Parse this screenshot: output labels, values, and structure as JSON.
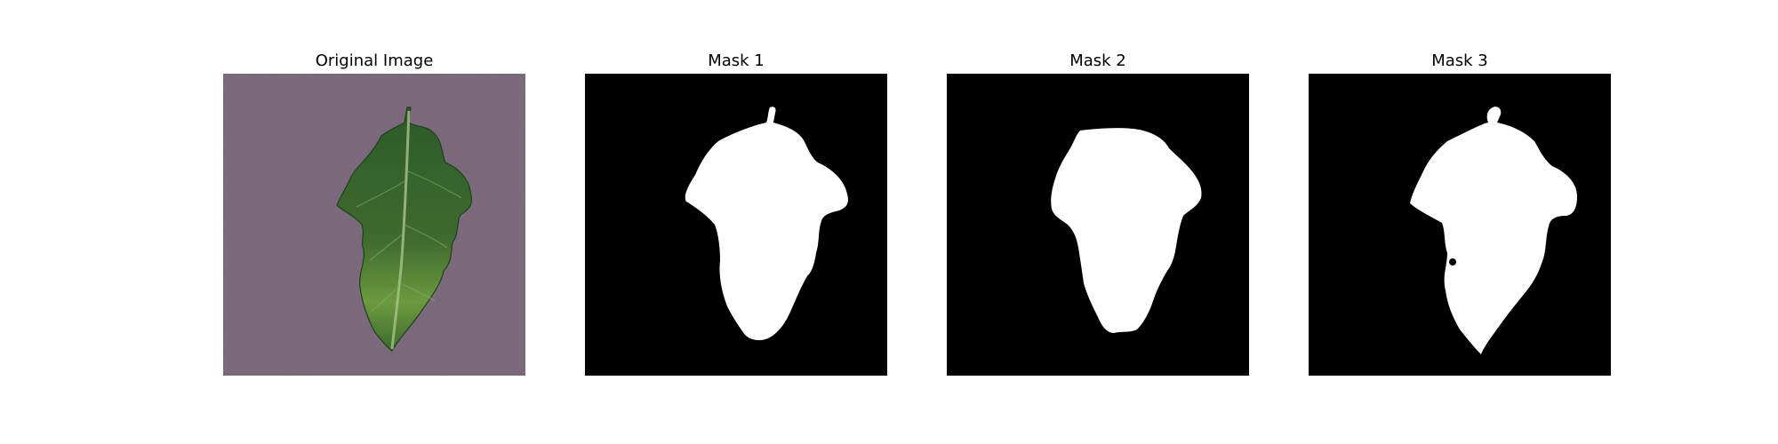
{
  "figure": {
    "panels": [
      {
        "title": "Original Image",
        "kind": "photo"
      },
      {
        "title": "Mask 1",
        "kind": "mask"
      },
      {
        "title": "Mask 2",
        "kind": "mask"
      },
      {
        "title": "Mask 3",
        "kind": "mask"
      }
    ]
  },
  "colors": {
    "background_photo": "#7f6e80",
    "leaf_dark": "#2f5a2a",
    "leaf_light": "#6f9a3e",
    "mask_background": "#000000",
    "mask_foreground": "#ffffff"
  }
}
